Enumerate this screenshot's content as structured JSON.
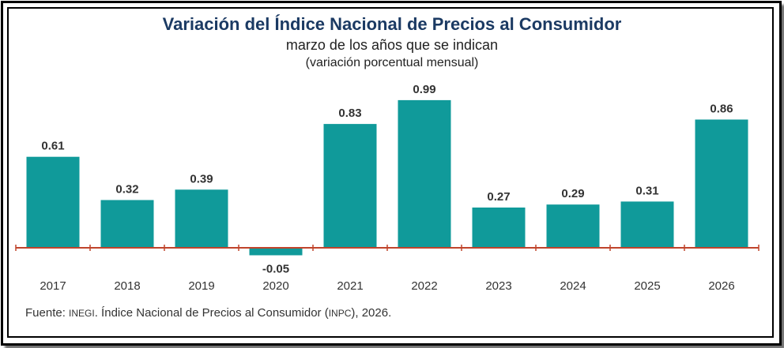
{
  "header": {
    "title": "Variación del Índice Nacional de Precios al Consumidor",
    "subtitle": "marzo de los años que se indican",
    "unit": "(variación porcentual mensual)"
  },
  "source": {
    "prefix": "Fuente: ",
    "org": "INEGI",
    "middle": ". Índice Nacional de Precios al Consumidor (",
    "abbr": "INPC",
    "suffix": "), 2026."
  },
  "colors": {
    "bar": "#109a9a",
    "axis": "#c0442b",
    "title": "#1b3a63"
  },
  "chart_data": {
    "type": "bar",
    "title": "Variación del Índice Nacional de Precios al Consumidor",
    "subtitle": "marzo de los años que se indican",
    "ylabel": "(variación porcentual mensual)",
    "xlabel": "",
    "categories": [
      "2017",
      "2018",
      "2019",
      "2020",
      "2021",
      "2022",
      "2023",
      "2024",
      "2025",
      "2026"
    ],
    "values": [
      0.61,
      0.32,
      0.39,
      -0.05,
      0.83,
      0.99,
      0.27,
      0.29,
      0.31,
      0.86
    ],
    "value_labels": [
      "0.61",
      "0.32",
      "0.39",
      "-0.05",
      "0.83",
      "0.99",
      "0.27",
      "0.29",
      "0.31",
      "0.86"
    ],
    "grid": false,
    "legend": "none"
  }
}
